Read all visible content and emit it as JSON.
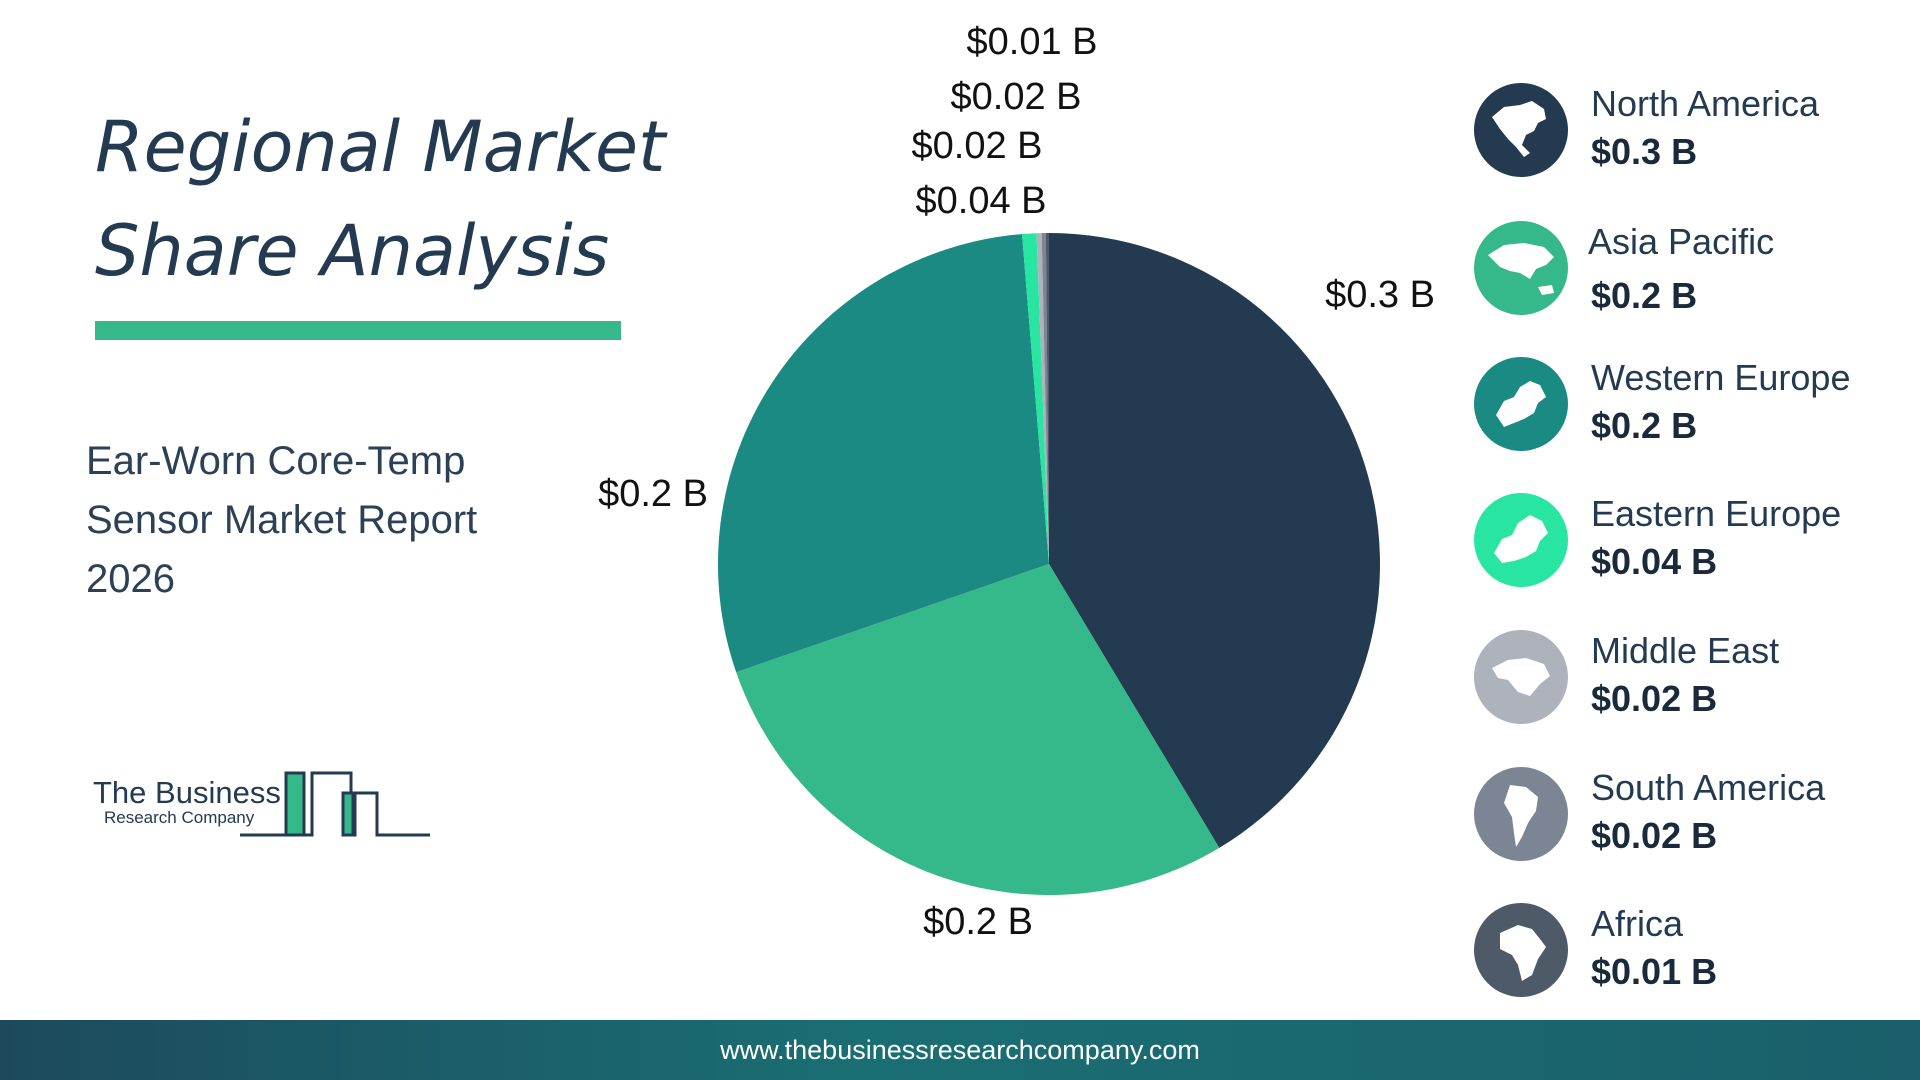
{
  "title": "Regional Market Share Analysis",
  "subtitle": "Ear-Worn Core-Temp Sensor Market Report 2026",
  "logo": {
    "line1": "The Business",
    "line2": "Research Company"
  },
  "footer": {
    "url": "www.thebusinessresearchcompany.com"
  },
  "colors": {
    "title_bar": "#35b98a",
    "footer": "#1a6f73"
  },
  "legend": [
    {
      "name": "North America",
      "value": "$0.3 B",
      "color": "#243a50",
      "icon": "north-america-map-icon"
    },
    {
      "name": "Asia Pacific",
      "value": "$0.2 B",
      "color": "#35b98a",
      "icon": "asia-pacific-map-icon"
    },
    {
      "name": "Western Europe",
      "value": "$0.2 B",
      "color": "#1a8a82",
      "icon": "western-europe-map-icon"
    },
    {
      "name": "Eastern Europe",
      "value": "$0.04 B",
      "color": "#28e6a2",
      "icon": "eastern-europe-map-icon"
    },
    {
      "name": "Middle East",
      "value": "$0.02 B",
      "color": "#aeb2bb",
      "icon": "middle-east-map-icon"
    },
    {
      "name": "South America",
      "value": "$0.02 B",
      "color": "#7c8593",
      "icon": "south-america-map-icon"
    },
    {
      "name": "Africa",
      "value": "$0.01 B",
      "color": "#4e5a68",
      "icon": "africa-map-icon"
    }
  ],
  "chart_data": {
    "type": "pie",
    "categories": [
      "North America",
      "Asia Pacific",
      "Western Europe",
      "Eastern Europe",
      "Middle East",
      "South America",
      "Africa"
    ],
    "values": [
      0.3,
      0.2,
      0.2,
      0.04,
      0.02,
      0.02,
      0.01
    ],
    "slice_shares": [
      0.414,
      0.283,
      0.29,
      0.007,
      0.0025,
      0.002,
      0.0015
    ],
    "labels": [
      "$0.3 B",
      "$0.2 B",
      "$0.2 B",
      "$0.04 B",
      "$0.02 B",
      "$0.02 B",
      "$0.01 B"
    ],
    "colors": [
      "#243a50",
      "#35b98a",
      "#1a8a82",
      "#28e6a2",
      "#aeb2bb",
      "#7c8593",
      "#4e5a68"
    ],
    "start_angle_deg": 0,
    "direction": "clockwise",
    "legend_position": "right"
  }
}
